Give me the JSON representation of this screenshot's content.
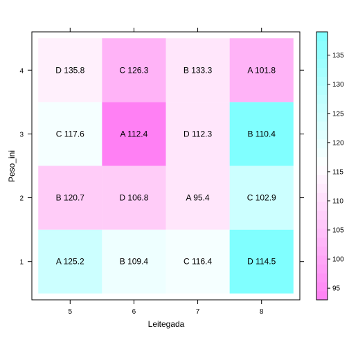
{
  "chart_data": {
    "type": "heatmap",
    "xlabel": "Leitegada",
    "ylabel": "Peso_ini",
    "x_ticks": [
      "5",
      "6",
      "7",
      "8"
    ],
    "y_ticks": [
      "1",
      "2",
      "3",
      "4"
    ],
    "cells": [
      {
        "x": "5",
        "y": "1",
        "label": "A 125.2",
        "value": 125.2
      },
      {
        "x": "6",
        "y": "1",
        "label": "B 109.4",
        "value": 109.4
      },
      {
        "x": "7",
        "y": "1",
        "label": "C 116.4",
        "value": 116.4
      },
      {
        "x": "8",
        "y": "1",
        "label": "D 114.5",
        "value": 114.5
      },
      {
        "x": "5",
        "y": "2",
        "label": "B 120.7",
        "value": 120.7
      },
      {
        "x": "6",
        "y": "2",
        "label": "D 106.8",
        "value": 106.8
      },
      {
        "x": "7",
        "y": "2",
        "label": "A 95.4",
        "value": 95.4
      },
      {
        "x": "8",
        "y": "2",
        "label": "C 102.9",
        "value": 102.9
      },
      {
        "x": "5",
        "y": "3",
        "label": "C 117.6",
        "value": 117.6
      },
      {
        "x": "6",
        "y": "3",
        "label": "A 112.4",
        "value": 112.4
      },
      {
        "x": "7",
        "y": "3",
        "label": "D 112.3",
        "value": 112.3
      },
      {
        "x": "8",
        "y": "3",
        "label": "B 110.4",
        "value": 110.4
      },
      {
        "x": "5",
        "y": "4",
        "label": "D 135.8",
        "value": 135.8
      },
      {
        "x": "6",
        "y": "4",
        "label": "C 126.3",
        "value": 126.3
      },
      {
        "x": "7",
        "y": "4",
        "label": "B 133.3",
        "value": 133.3
      },
      {
        "x": "8",
        "y": "4",
        "label": "A 101.8",
        "value": 101.8
      }
    ],
    "cell_colors": [
      [
        "#ccffff",
        "#eeffff",
        "#f5ffff",
        "#80ffff"
      ],
      [
        "#ffccf8",
        "#ffccf8",
        "#ffe6fb",
        "#ccffff"
      ],
      [
        "#f5ffff",
        "#ff80f4",
        "#ffe6fb",
        "#80ffff"
      ],
      [
        "#fff0fc",
        "#ffb3f7",
        "#ffe6fb",
        "#ffb3f7"
      ]
    ],
    "colorkey": {
      "range": [
        93,
        139
      ],
      "ticks": [
        "95",
        "100",
        "105",
        "110",
        "115",
        "120",
        "125",
        "130",
        "135"
      ],
      "low_color": "#ff80f4",
      "mid_color": "#ffffff",
      "high_color": "#80ffff",
      "mid_value": 116
    },
    "grid": false,
    "legend": "right"
  }
}
